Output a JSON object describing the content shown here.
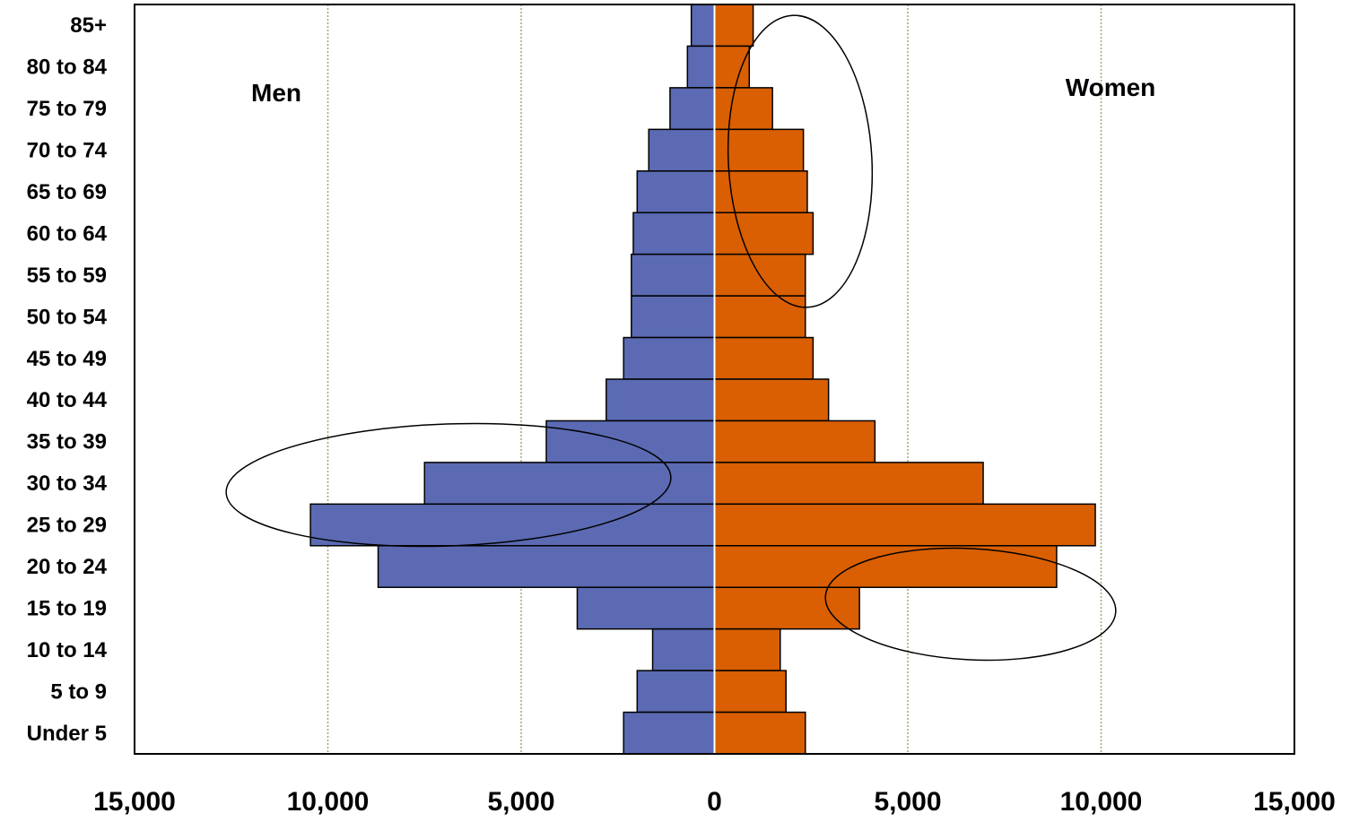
{
  "chart_data": {
    "type": "bar",
    "orientation": "horizontal",
    "subtype": "population-pyramid",
    "categories": [
      "85+",
      "80 to 84",
      "75 to 79",
      "70 to 74",
      "65 to 69",
      "60 to 64",
      "55 to 59",
      "50 to 54",
      "45 to 49",
      "40 to 44",
      "35 to 39",
      "30 to 34",
      "25 to 29",
      "20 to 24",
      "15 to 19",
      "10 to 14",
      "5 to 9",
      "Under 5"
    ],
    "series": [
      {
        "name": "Men",
        "color": "#5B6AB3",
        "values": [
          600,
          700,
          1150,
          1700,
          2000,
          2100,
          2150,
          2150,
          2350,
          2800,
          4350,
          7500,
          10450,
          8700,
          3550,
          1600,
          2000,
          2350
        ]
      },
      {
        "name": "Women",
        "color": "#D95F02",
        "values": [
          1000,
          900,
          1500,
          2300,
          2400,
          2550,
          2350,
          2350,
          2550,
          2950,
          4150,
          6950,
          9850,
          8850,
          3750,
          1700,
          1850,
          2350
        ]
      }
    ],
    "x_ticks": [
      "15,000",
      "10,000",
      "5,000",
      "0",
      "5,000",
      "10,000",
      "15,000"
    ],
    "xlim": [
      -15000,
      15000
    ],
    "grid": "vertical dotted lines at ±5,000 and ±10,000",
    "legend": "none; series labels printed inside plot (Men upper-left, Women upper-right)",
    "annotations": [
      {
        "shape": "ellipse",
        "series": "Women",
        "spans": "55 to 59 – 75 to 79"
      },
      {
        "shape": "ellipse",
        "series": "Men",
        "spans": "25 to 29 – 35 to 39"
      },
      {
        "shape": "ellipse",
        "series": "Women",
        "spans": "15 to 19 – 20 to 24"
      }
    ],
    "colors": {
      "axis": "#000000",
      "grid": "#A5A37A",
      "center_line": "#FFFFFF"
    }
  }
}
